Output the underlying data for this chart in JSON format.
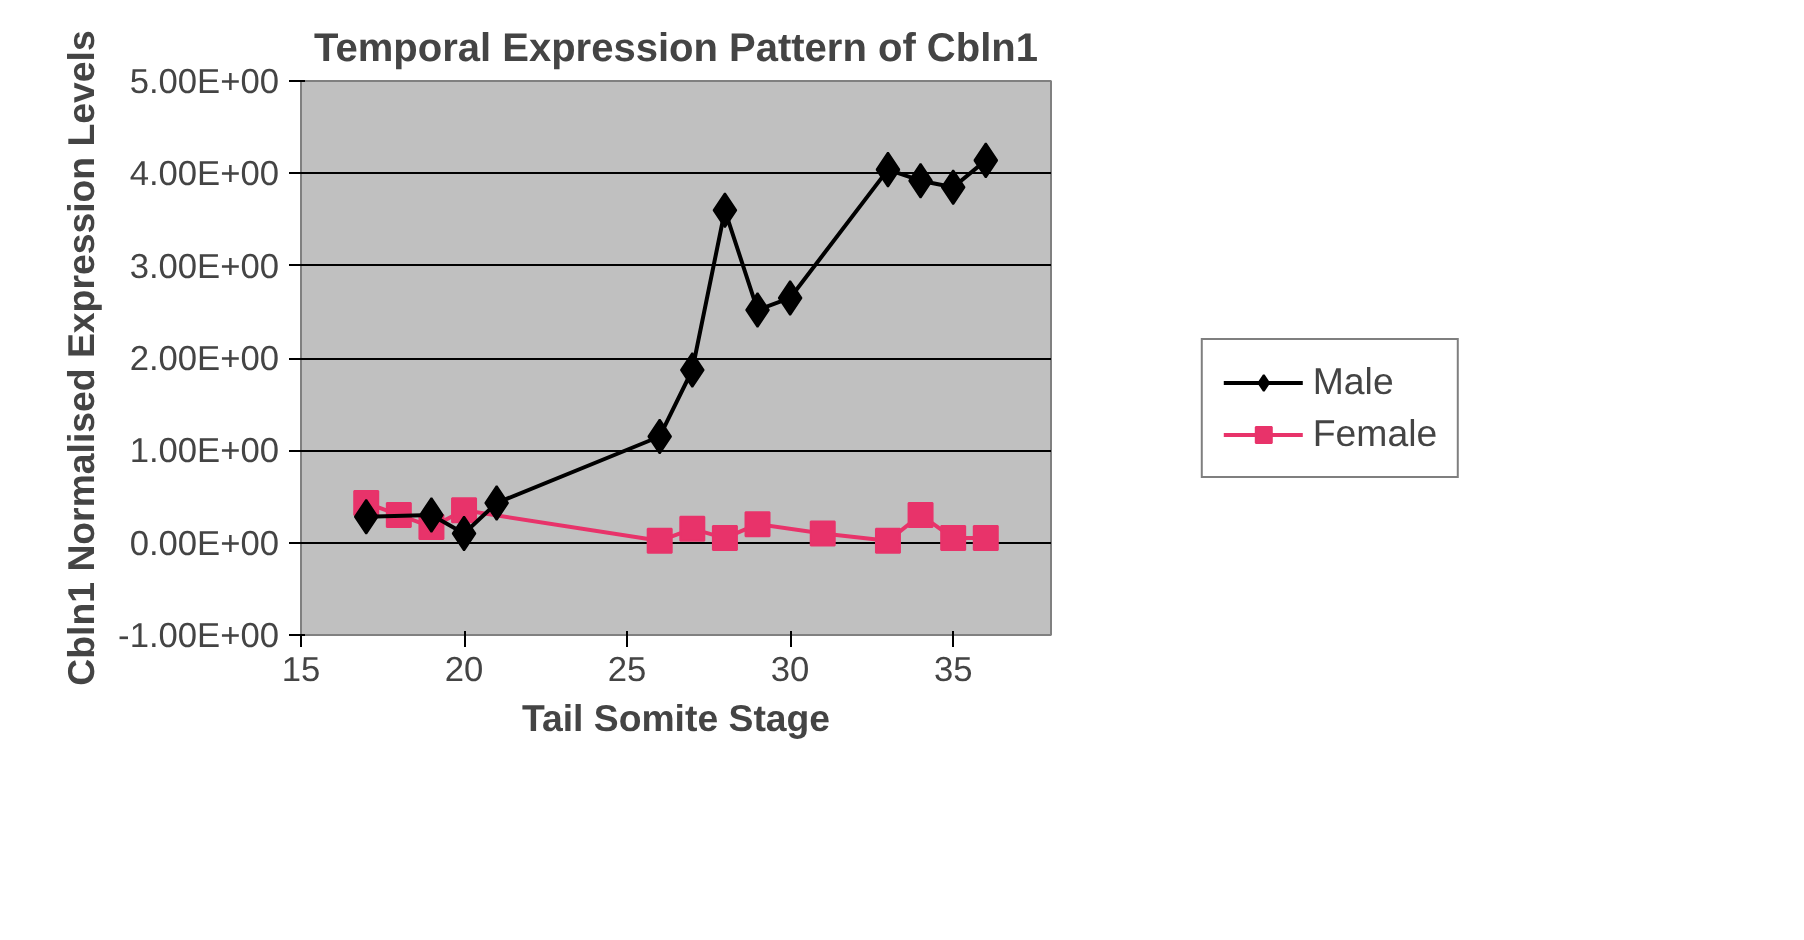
{
  "chart_data": {
    "type": "line",
    "title": "Temporal Expression Pattern of Cbln1",
    "xlabel": "Tail Somite Stage",
    "ylabel": "Cbln1 Normalised Expression Levels",
    "xlim": [
      15,
      38
    ],
    "xticks": [
      15,
      20,
      25,
      30,
      35
    ],
    "ylim": [
      -1,
      5
    ],
    "yticks": [
      {
        "value": -1,
        "label": "-1.00E+00"
      },
      {
        "value": 0,
        "label": "0.00E+00"
      },
      {
        "value": 1,
        "label": "1.00E+00"
      },
      {
        "value": 2,
        "label": "2.00E+00"
      },
      {
        "value": 3,
        "label": "3.00E+00"
      },
      {
        "value": 4,
        "label": "4.00E+00"
      },
      {
        "value": 5,
        "label": "5.00E+00"
      }
    ],
    "grid": "y",
    "legend": "right",
    "series": [
      {
        "name": "Male",
        "color": "#000000",
        "marker": "diamond",
        "x": [
          17,
          19,
          20,
          21,
          26,
          27,
          28,
          29,
          30,
          33,
          34,
          35,
          36
        ],
        "values": [
          0.28,
          0.3,
          0.1,
          0.43,
          1.15,
          1.87,
          3.6,
          2.52,
          2.65,
          4.04,
          3.92,
          3.85,
          4.14
        ]
      },
      {
        "name": "Female",
        "color": "#e8336a",
        "marker": "square",
        "x": [
          17,
          18,
          19,
          20,
          26,
          27,
          28,
          29,
          31,
          33,
          34,
          35,
          36
        ],
        "values": [
          0.43,
          0.3,
          0.17,
          0.35,
          0.02,
          0.15,
          0.05,
          0.2,
          0.1,
          0.02,
          0.3,
          0.05,
          0.05
        ]
      }
    ]
  }
}
